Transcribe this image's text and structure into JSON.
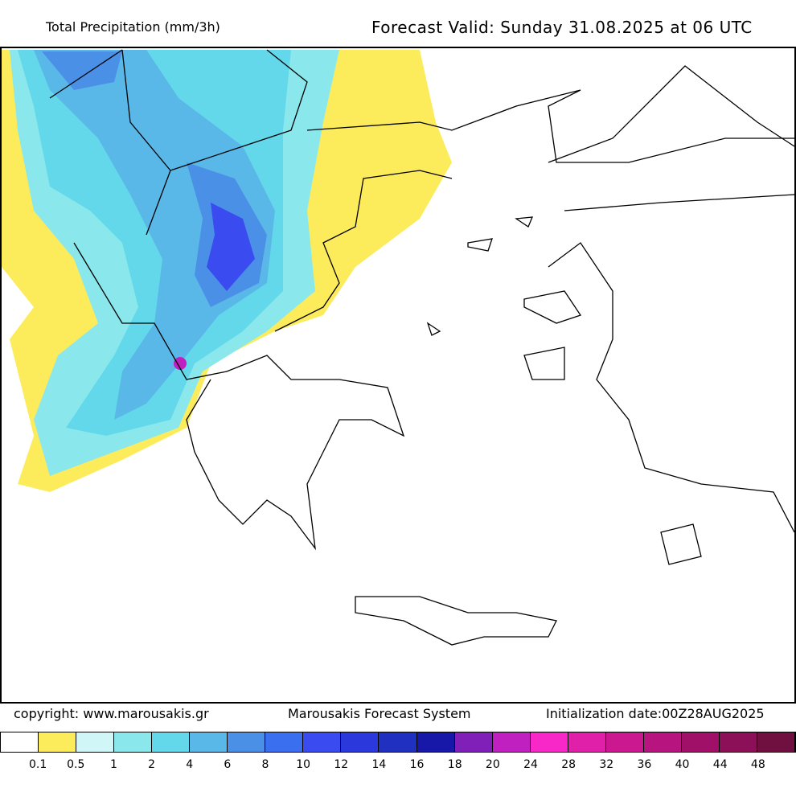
{
  "header": {
    "title": "Total Precipitation (mm/3h)",
    "valid": "Forecast Valid:  Sunday 31.08.2025 at 06 UTC"
  },
  "footer": {
    "copyright": "copyright: www.marousakis.gr",
    "system": "Marousakis Forecast System",
    "init": "Initialization date:00Z28AUG2025"
  },
  "legend": {
    "colors": [
      "#ffffff",
      "#fcec5c",
      "#d0f6f8",
      "#8ae8ec",
      "#62d8ea",
      "#5ab8e8",
      "#4a90e6",
      "#3a70f0",
      "#3a4cf0",
      "#2a38dc",
      "#2030c0",
      "#1818a8",
      "#8020b8",
      "#c020c0",
      "#f828c8",
      "#e020a8",
      "#cc1890",
      "#b81480",
      "#a01068",
      "#8c1058",
      "#701040"
    ],
    "labels": [
      "0.1",
      "0.5",
      "1",
      "2",
      "4",
      "6",
      "8",
      "10",
      "12",
      "14",
      "16",
      "18",
      "20",
      "24",
      "28",
      "32",
      "36",
      "40",
      "44",
      "48"
    ]
  }
}
